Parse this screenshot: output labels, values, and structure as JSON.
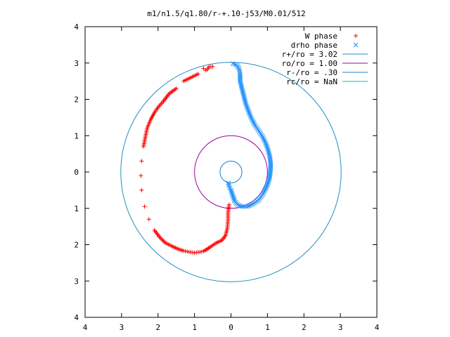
{
  "chart_data": {
    "type": "scatter",
    "title": "m1/n1.5/q1.80/r-+.10-j53/M0.01/512",
    "xlabel": "",
    "ylabel": "",
    "xlim": [
      -4,
      4
    ],
    "ylim": [
      -4,
      4
    ],
    "x_ticks": [
      {
        "value": -4,
        "label": "4"
      },
      {
        "value": -3,
        "label": "3"
      },
      {
        "value": -2,
        "label": "2"
      },
      {
        "value": -1,
        "label": "1"
      },
      {
        "value": 0,
        "label": "0"
      },
      {
        "value": 1,
        "label": "1"
      },
      {
        "value": 2,
        "label": "2"
      },
      {
        "value": 3,
        "label": "3"
      },
      {
        "value": 4,
        "label": "4"
      }
    ],
    "y_ticks": [
      {
        "value": 4,
        "label": "4"
      },
      {
        "value": 3,
        "label": "3"
      },
      {
        "value": 2,
        "label": "2"
      },
      {
        "value": 1,
        "label": "1"
      },
      {
        "value": 0,
        "label": "0"
      },
      {
        "value": -1,
        "label": "1"
      },
      {
        "value": -2,
        "label": "2"
      },
      {
        "value": -3,
        "label": "3"
      },
      {
        "value": -4,
        "label": "4"
      }
    ],
    "grid": false,
    "legend_position": "top-right",
    "series": [
      {
        "name": "W phase",
        "marker": "plus",
        "color": "#ff0000",
        "points": [
          [
            -0.75,
            2.85
          ],
          [
            -0.7,
            2.8
          ],
          [
            -0.65,
            2.82
          ],
          [
            -0.6,
            2.9
          ],
          [
            -0.5,
            2.9
          ],
          [
            -0.9,
            2.7
          ],
          [
            -1.1,
            2.6
          ],
          [
            -1.3,
            2.5
          ],
          [
            -1.5,
            2.3
          ],
          [
            -1.7,
            2.15
          ],
          [
            -1.85,
            1.95
          ],
          [
            -2.0,
            1.78
          ],
          [
            -2.1,
            1.63
          ],
          [
            -2.2,
            1.45
          ],
          [
            -2.3,
            1.2
          ],
          [
            -2.35,
            0.95
          ],
          [
            -2.4,
            0.7
          ],
          [
            -2.45,
            0.3
          ],
          [
            -2.47,
            -0.1
          ],
          [
            -2.45,
            -0.5
          ],
          [
            -2.37,
            -0.95
          ],
          [
            -2.25,
            -1.3
          ],
          [
            -2.1,
            -1.6
          ],
          [
            -1.95,
            -1.8
          ],
          [
            -1.8,
            -1.95
          ],
          [
            -1.6,
            -2.05
          ],
          [
            -1.45,
            -2.12
          ],
          [
            -1.3,
            -2.17
          ],
          [
            -1.15,
            -2.2
          ],
          [
            -1.0,
            -2.22
          ],
          [
            -0.85,
            -2.2
          ],
          [
            -0.75,
            -2.18
          ],
          [
            -0.65,
            -2.12
          ],
          [
            -0.55,
            -2.05
          ],
          [
            -0.4,
            -1.95
          ],
          [
            -0.25,
            -1.88
          ],
          [
            -0.15,
            -1.75
          ],
          [
            -0.1,
            -1.55
          ],
          [
            -0.08,
            -1.3
          ],
          [
            -0.08,
            -1.1
          ],
          [
            -0.05,
            -0.9
          ]
        ]
      },
      {
        "name": "drho phase",
        "marker": "cross",
        "color": "#1e90ff",
        "points": [
          [
            0.05,
            2.98
          ],
          [
            0.15,
            2.95
          ],
          [
            0.22,
            2.85
          ],
          [
            0.25,
            2.7
          ],
          [
            0.25,
            2.5
          ],
          [
            0.3,
            2.3
          ],
          [
            0.35,
            2.1
          ],
          [
            0.4,
            1.9
          ],
          [
            0.47,
            1.7
          ],
          [
            0.55,
            1.5
          ],
          [
            0.65,
            1.3
          ],
          [
            0.75,
            1.15
          ],
          [
            0.85,
            1.0
          ],
          [
            0.95,
            0.8
          ],
          [
            1.02,
            0.6
          ],
          [
            1.07,
            0.4
          ],
          [
            1.09,
            0.2
          ],
          [
            1.08,
            0.0
          ],
          [
            1.05,
            -0.2
          ],
          [
            0.98,
            -0.4
          ],
          [
            0.88,
            -0.6
          ],
          [
            0.75,
            -0.78
          ],
          [
            0.6,
            -0.88
          ],
          [
            0.45,
            -0.95
          ],
          [
            0.3,
            -0.95
          ],
          [
            0.18,
            -0.9
          ],
          [
            0.1,
            -0.8
          ],
          [
            0.05,
            -0.65
          ],
          [
            0.0,
            -0.5
          ],
          [
            -0.05,
            -0.4
          ],
          [
            -0.07,
            -0.3
          ]
        ]
      }
    ],
    "circles": [
      {
        "name": "r+/ro = 3.02",
        "radius": 3.02,
        "color": "#1f8fbf"
      },
      {
        "name": "ro/ro = 1.00",
        "radius": 1.0,
        "color": "#a000a0"
      },
      {
        "name": "r-/ro = .30",
        "radius": 0.3,
        "color": "#1e7fc8"
      },
      {
        "name": "rc/ro = NaN",
        "radius": null,
        "color": "#00b8d0"
      }
    ]
  }
}
